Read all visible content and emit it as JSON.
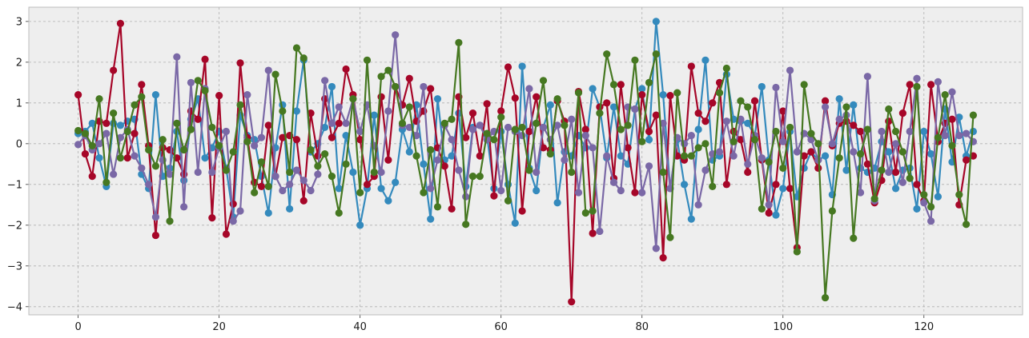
{
  "chart_data": {
    "type": "line",
    "title": "",
    "xlabel": "",
    "ylabel": "",
    "xlim": [
      -7,
      134
    ],
    "ylim": [
      -4.2,
      3.35
    ],
    "xticks": [
      0,
      20,
      40,
      60,
      80,
      100,
      120
    ],
    "yticks": [
      -4,
      -3,
      -2,
      -1,
      0,
      1,
      2,
      3
    ],
    "grid": true,
    "legend": "none",
    "background": "#eeeeee",
    "x_start": 0,
    "series": [
      {
        "color": "#348abd",
        "values": [
          0.25,
          0.3,
          0.5,
          -0.35,
          -1.05,
          0.5,
          0.45,
          0.55,
          0.6,
          -0.75,
          -1.1,
          1.2,
          -0.8,
          -0.6,
          0.3,
          -0.9,
          0.6,
          1.1,
          -0.35,
          -0.1,
          0.3,
          -0.6,
          -1.8,
          0.7,
          0.2,
          0.1,
          -0.8,
          -1.7,
          -0.1,
          0.95,
          -1.6,
          0.8,
          2.05,
          -0.2,
          0.0,
          0.4,
          1.4,
          -1.1,
          0.2,
          -0.7,
          -2.0,
          -1.1,
          0.7,
          -1.1,
          -1.4,
          -0.95,
          0.35,
          -0.2,
          0.95,
          -0.5,
          -1.85,
          1.1,
          -0.4,
          -0.3,
          0.75,
          -1.05,
          0.4,
          0.45,
          0.2,
          -1.1,
          0.3,
          -1.0,
          -1.95,
          1.9,
          -0.6,
          -1.15,
          0.4,
          0.95,
          -1.45,
          -0.2,
          -0.3,
          0.2,
          -0.1,
          1.35,
          0.9,
          -0.35,
          0.9,
          -0.3,
          -0.5,
          0.85,
          1.35,
          0.1,
          3.0,
          1.2,
          -1.1,
          0.1,
          -1.0,
          -1.85,
          0.35,
          2.05,
          -0.4,
          -0.3,
          1.7,
          0.6,
          0.55,
          0.5,
          0.2,
          1.4,
          -0.4,
          -1.75,
          -1.1,
          0.3,
          -1.3,
          -0.6,
          -0.2,
          -0.4,
          -0.3,
          -1.25,
          1.1,
          -0.65,
          0.95,
          -0.6,
          -0.7,
          -0.6,
          0.05,
          -0.2,
          -1.1,
          -0.65,
          -0.6,
          -1.6,
          0.3,
          -0.25,
          -1.3,
          0.85,
          -0.45,
          0.65,
          -0.3,
          0.3
        ]
      },
      {
        "color": "#a60628",
        "values": [
          1.2,
          -0.25,
          -0.8,
          0.55,
          0.5,
          1.8,
          2.95,
          -0.35,
          0.25,
          1.45,
          -0.05,
          -2.25,
          -0.1,
          -0.15,
          -0.35,
          -0.75,
          0.8,
          0.6,
          2.07,
          -1.82,
          1.18,
          -2.22,
          -1.48,
          1.98,
          0.15,
          -0.95,
          -1.05,
          0.45,
          -0.8,
          0.15,
          0.2,
          0.1,
          -1.4,
          0.75,
          -0.3,
          1.1,
          0.15,
          0.5,
          1.83,
          1.2,
          0.1,
          -1.0,
          -0.8,
          1.15,
          -0.4,
          1.4,
          0.95,
          1.6,
          0.55,
          0.8,
          1.35,
          -0.1,
          -0.55,
          -1.6,
          1.15,
          0.15,
          0.75,
          -0.3,
          0.98,
          -1.28,
          0.8,
          1.88,
          1.12,
          -1.65,
          0.3,
          1.15,
          -0.1,
          -0.15,
          1.05,
          0.55,
          -3.88,
          1.28,
          0.35,
          -2.2,
          0.9,
          1.0,
          -0.85,
          1.45,
          -0.1,
          -1.2,
          1.2,
          0.3,
          0.7,
          -2.8,
          1.18,
          -0.3,
          -0.4,
          1.9,
          0.75,
          0.55,
          1.0,
          1.5,
          -1.0,
          0.3,
          0.1,
          -0.7,
          1.05,
          -0.4,
          -1.7,
          -1.0,
          0.8,
          -1.1,
          -2.55,
          -0.3,
          -0.2,
          -0.6,
          1.05,
          -0.05,
          0.5,
          0.55,
          0.45,
          0.3,
          -0.5,
          -1.45,
          -0.9,
          0.55,
          -0.7,
          0.75,
          1.45,
          -1.0,
          -1.4,
          1.45,
          0.05,
          0.5,
          0.6,
          -1.5,
          -0.4,
          -0.3
        ]
      },
      {
        "color": "#7a68a6",
        "values": [
          -0.02,
          0.2,
          -0.15,
          0.0,
          0.25,
          -0.75,
          0.15,
          0.35,
          -0.3,
          -0.6,
          -1.0,
          -1.8,
          -0.4,
          -0.75,
          2.13,
          -1.55,
          1.5,
          -0.7,
          1.35,
          -0.7,
          -0.1,
          0.3,
          -1.9,
          -1.65,
          1.2,
          -0.05,
          0.15,
          1.8,
          -0.8,
          -1.15,
          -1.0,
          -0.65,
          -0.9,
          -1.15,
          -0.75,
          1.55,
          0.5,
          0.9,
          0.5,
          1.1,
          0.3,
          0.95,
          -0.05,
          -0.7,
          0.8,
          2.67,
          0.45,
          0.4,
          0.2,
          1.4,
          -1.1,
          -0.4,
          0.45,
          0.1,
          -0.65,
          -1.3,
          0.35,
          0.45,
          0.1,
          0.3,
          -1.15,
          0.4,
          0.3,
          0.2,
          1.35,
          -0.7,
          0.4,
          0.1,
          0.45,
          -0.4,
          0.6,
          -1.2,
          0.2,
          -0.1,
          -2.15,
          -0.3,
          -0.95,
          -1.15,
          0.9,
          0.85,
          -1.2,
          -0.55,
          -2.57,
          0.5,
          -1.1,
          0.15,
          0.0,
          0.2,
          -1.5,
          -0.65,
          -0.25,
          -0.2,
          0.55,
          -0.3,
          0.6,
          -0.5,
          0.2,
          -0.35,
          -1.5,
          1.38,
          0.05,
          1.8,
          -0.2,
          0.25,
          0.1,
          -0.4,
          0.9,
          0.0,
          0.6,
          0.7,
          -0.2,
          -1.2,
          1.65,
          -1.4,
          0.3,
          -0.7,
          0.0,
          -0.95,
          0.3,
          1.6,
          -1.45,
          -1.9,
          1.52,
          0.2,
          1.27,
          0.2,
          0.25,
          0.05
        ]
      },
      {
        "color": "#467821",
        "values": [
          0.32,
          0.25,
          -0.05,
          1.1,
          -0.95,
          0.75,
          -0.35,
          0.3,
          0.95,
          1.15,
          -0.15,
          -0.55,
          0.1,
          -1.9,
          0.5,
          -0.15,
          0.35,
          1.55,
          1.3,
          0.4,
          -0.05,
          -0.65,
          -0.2,
          0.95,
          0.05,
          -1.2,
          -0.45,
          -1.05,
          1.7,
          0.8,
          -0.7,
          2.35,
          2.1,
          -0.15,
          -0.55,
          -0.25,
          -0.8,
          -1.7,
          -0.5,
          1.1,
          -1.2,
          2.05,
          -0.7,
          1.65,
          1.8,
          1.4,
          0.5,
          0.9,
          -0.3,
          -1.2,
          -0.15,
          -1.55,
          0.5,
          0.6,
          2.48,
          -1.98,
          -0.8,
          -0.8,
          0.25,
          0.1,
          0.65,
          -1.4,
          0.35,
          0.4,
          -0.65,
          0.5,
          1.55,
          -0.25,
          1.1,
          0.45,
          -0.7,
          1.25,
          -1.7,
          -1.65,
          0.75,
          2.2,
          1.45,
          0.35,
          0.45,
          2.05,
          0.05,
          1.5,
          2.2,
          -0.7,
          -2.3,
          1.25,
          -0.3,
          -0.3,
          -0.1,
          0.0,
          -1.05,
          1.25,
          1.85,
          0.05,
          1.05,
          0.9,
          0.1,
          -1.6,
          -0.45,
          0.3,
          -0.6,
          0.4,
          -2.65,
          1.45,
          0.25,
          0.0,
          -3.78,
          -1.65,
          -0.35,
          0.9,
          -2.32,
          -0.25,
          0.35,
          -1.35,
          -0.65,
          0.85,
          0.3,
          -0.2,
          -0.85,
          1.4,
          -1.25,
          -1.55,
          0.15,
          1.2,
          -0.05,
          -1.25,
          -1.98,
          0.7
        ]
      }
    ]
  }
}
